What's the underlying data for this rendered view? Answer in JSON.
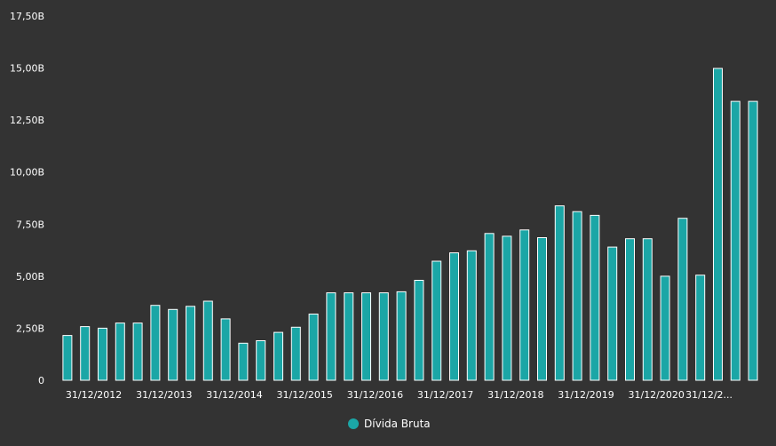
{
  "chart_data": {
    "type": "bar",
    "ylim": [
      0,
      17.5
    ],
    "y_ticks": [
      "0",
      "2,50B",
      "5,00B",
      "7,50B",
      "10,00B",
      "12,50B",
      "15,00B",
      "17,50B"
    ],
    "y_tick_values": [
      0,
      2.5,
      5,
      7.5,
      10,
      12.5,
      15,
      17.5
    ],
    "x_tick_labels": [
      "31/12/2012",
      "31/12/2013",
      "31/12/2014",
      "31/12/2015",
      "31/12/2016",
      "31/12/2017",
      "31/12/2018",
      "31/12/2019",
      "31/12/2020",
      "31/12/2..."
    ],
    "x_tick_bar_index": [
      1.5,
      5.5,
      9.5,
      13.5,
      17.5,
      21.5,
      25.5,
      29.5,
      33.5,
      36.5
    ],
    "series": [
      {
        "name": "Dívida Bruta",
        "color": "#1ba6a6",
        "values": [
          2.15,
          2.58,
          2.5,
          2.75,
          2.75,
          3.6,
          3.4,
          3.55,
          3.8,
          2.95,
          1.78,
          1.9,
          2.3,
          2.55,
          3.18,
          4.2,
          4.2,
          4.2,
          4.2,
          4.25,
          4.8,
          5.72,
          6.12,
          6.22,
          7.05,
          6.92,
          7.22,
          6.85,
          8.38,
          8.1,
          7.92,
          6.4,
          6.8,
          6.8,
          5.0,
          7.78,
          5.05,
          14.98,
          13.4,
          13.4
        ]
      }
    ],
    "legend": {
      "position": "bottom-center",
      "items": [
        "Dívida Bruta"
      ]
    }
  }
}
